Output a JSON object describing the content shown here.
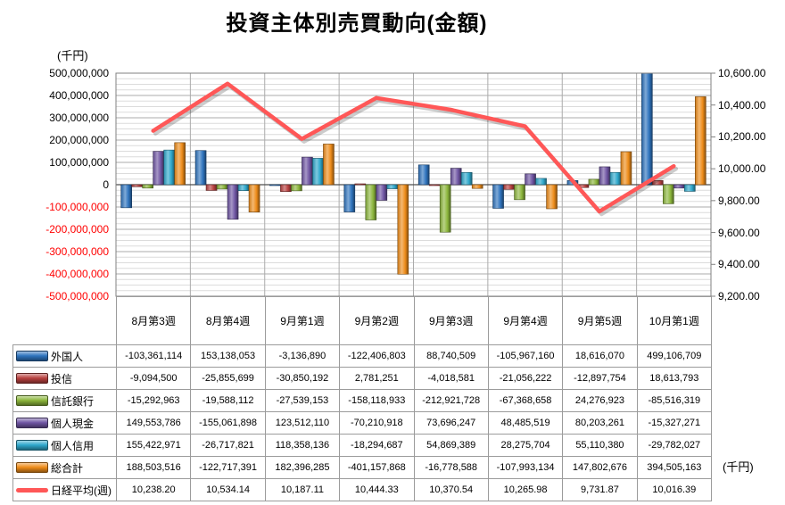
{
  "title": "投資主体別売買動向(金額)",
  "axis_unit_left": "(千円)",
  "axis_unit_right": "(千円)",
  "chart_data": {
    "type": "bar",
    "combo": "clustered-bar + line on secondary axis",
    "title": "投資主体別売買動向(金額)",
    "categories": [
      "8月第3週",
      "8月第4週",
      "9月第1週",
      "9月第2週",
      "9月第3週",
      "9月第4週",
      "9月第5週",
      "10月第1週"
    ],
    "series": [
      {
        "name": "外国人",
        "type": "bar",
        "color": "#2F74BE",
        "values": [
          -103361114,
          153138053,
          -3136890,
          -122406803,
          88740509,
          -105967160,
          18616070,
          499106709
        ]
      },
      {
        "name": "投信",
        "type": "bar",
        "color": "#B84140",
        "values": [
          -9094500,
          -25855699,
          -30850192,
          2781251,
          -4018581,
          -21056222,
          -12897754,
          18613793
        ]
      },
      {
        "name": "信託銀行",
        "type": "bar",
        "color": "#8CB63C",
        "values": [
          -15292963,
          -19588112,
          -27539153,
          -158118933,
          -212921728,
          -67368658,
          24276923,
          -85516319
        ]
      },
      {
        "name": "個人現金",
        "type": "bar",
        "color": "#6F55A3",
        "values": [
          149553786,
          -155061898,
          123512110,
          -70210918,
          73696247,
          48485519,
          80203261,
          -15327271
        ]
      },
      {
        "name": "個人信用",
        "type": "bar",
        "color": "#2FA8CC",
        "values": [
          155422971,
          -26717821,
          118358136,
          -18294687,
          54869389,
          28275704,
          55110380,
          -29782027
        ]
      },
      {
        "name": "総合計",
        "type": "bar",
        "color": "#EE8C1A",
        "values": [
          188503516,
          -122717391,
          182396285,
          -401157868,
          -16778588,
          -107993134,
          147802676,
          394505163
        ]
      },
      {
        "name": "日経平均(週)",
        "type": "line",
        "axis": "right",
        "color": "#FF5757",
        "values": [
          10238.2,
          10534.14,
          10187.11,
          10444.33,
          10370.54,
          10265.98,
          9731.87,
          10016.39
        ]
      }
    ],
    "left_axis": {
      "label": "(千円)",
      "min": -500000000,
      "max": 500000000,
      "major": 100000000,
      "minor": 25000000,
      "negative_tick_color": "#FF0000"
    },
    "right_axis": {
      "label": "(千円)",
      "min": 9200,
      "max": 10600,
      "major": 200
    },
    "grid": true,
    "legend_position": "data-table-left-column"
  }
}
